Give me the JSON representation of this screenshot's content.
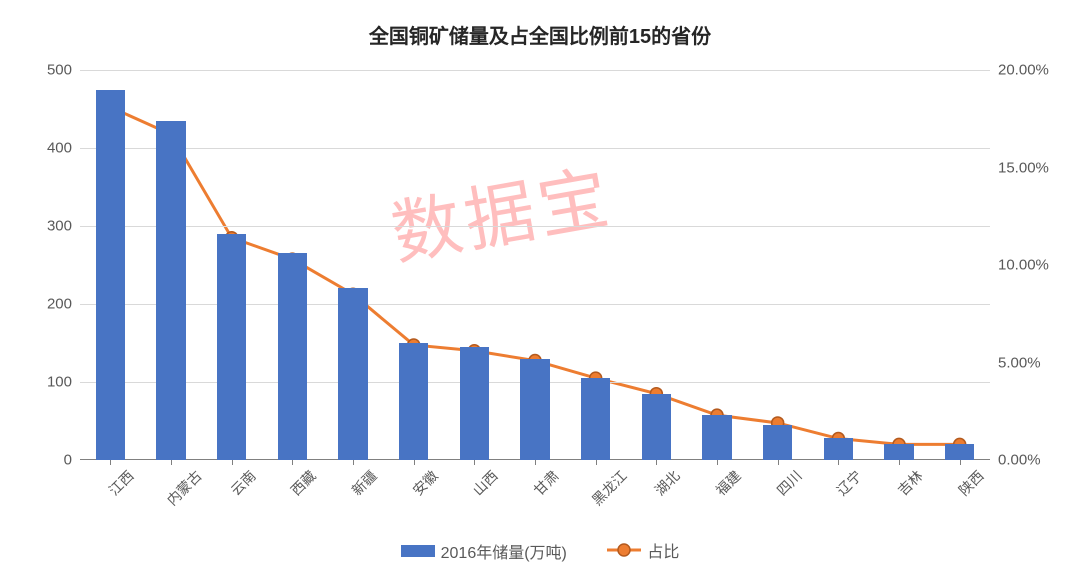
{
  "chart": {
    "type": "bar+line",
    "title": "全国铜矿储量及占全国比例前15的省份",
    "title_fontsize": 20,
    "title_color": "#262626",
    "background_color": "#ffffff",
    "grid_color": "#d9d9d9",
    "axis_color": "#808080",
    "label_color": "#595959",
    "label_fontsize": 15,
    "categories": [
      "江西",
      "内蒙古",
      "云南",
      "西藏",
      "新疆",
      "安徽",
      "山西",
      "甘肃",
      "黑龙江",
      "湖北",
      "福建",
      "四川",
      "辽宁",
      "吉林",
      "陕西"
    ],
    "series_bar": {
      "name": "2016年储量(万吨)",
      "color": "#4874c4",
      "values": [
        475,
        435,
        290,
        265,
        220,
        150,
        145,
        130,
        105,
        85,
        58,
        45,
        28,
        20,
        20
      ],
      "bar_width_ratio": 0.48,
      "y_axis_side": "left"
    },
    "series_line": {
      "name": "占比",
      "line_color": "#ed7d31",
      "marker_fill": "#ed7d31",
      "marker_stroke": "#b45a1e",
      "marker_radius": 6,
      "line_width": 3,
      "values": [
        18.1,
        16.7,
        11.4,
        10.3,
        8.5,
        5.9,
        5.6,
        5.1,
        4.2,
        3.4,
        2.3,
        1.9,
        1.1,
        0.8,
        0.8
      ],
      "y_axis_side": "right"
    },
    "y_left": {
      "min": 0,
      "max": 500,
      "step": 100,
      "format": "int"
    },
    "y_right": {
      "min": 0,
      "max": 20,
      "step": 5,
      "format": "percent2"
    },
    "watermark": {
      "text": "数据宝",
      "color": "rgba(255,70,70,0.35)",
      "fontsize": 70,
      "rotate_deg": -10
    },
    "legend": {
      "position": "bottom"
    }
  }
}
